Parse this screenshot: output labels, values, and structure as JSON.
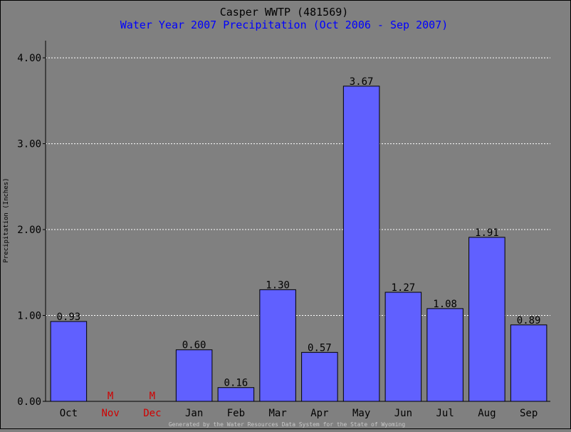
{
  "chart_data": {
    "type": "bar",
    "title": "Casper WWTP (481569)",
    "subtitle": "Water Year 2007 Precipitation (Oct 2006 - Sep 2007)",
    "ylabel": "Precipitation (Inches)",
    "xlabel": "",
    "categories": [
      "Oct",
      "Nov",
      "Dec",
      "Jan",
      "Feb",
      "Mar",
      "Apr",
      "May",
      "Jun",
      "Jul",
      "Aug",
      "Sep"
    ],
    "values": [
      0.93,
      null,
      null,
      0.6,
      0.16,
      1.3,
      0.57,
      3.67,
      1.27,
      1.08,
      1.91,
      0.89
    ],
    "value_labels": [
      "0.93",
      "M",
      "M",
      "0.60",
      "0.16",
      "1.30",
      "0.57",
      "3.67",
      "1.27",
      "1.08",
      "1.91",
      "0.89"
    ],
    "missing": [
      false,
      true,
      true,
      false,
      false,
      false,
      false,
      false,
      false,
      false,
      false,
      false
    ],
    "ylim": [
      0,
      4.2
    ],
    "yticks": [
      "0.00",
      "1.00",
      "2.00",
      "3.00",
      "4.00"
    ],
    "ytick_values": [
      0,
      1,
      2,
      3,
      4
    ],
    "grid": true,
    "legend": "none",
    "colors": {
      "background": "#808080",
      "bar": "#6060ff",
      "missing": "#d00000",
      "grid": "#ffffff",
      "subtitle": "#0000ff"
    },
    "footer": "Generated by the Water Resources Data System for the State of Wyoming"
  }
}
